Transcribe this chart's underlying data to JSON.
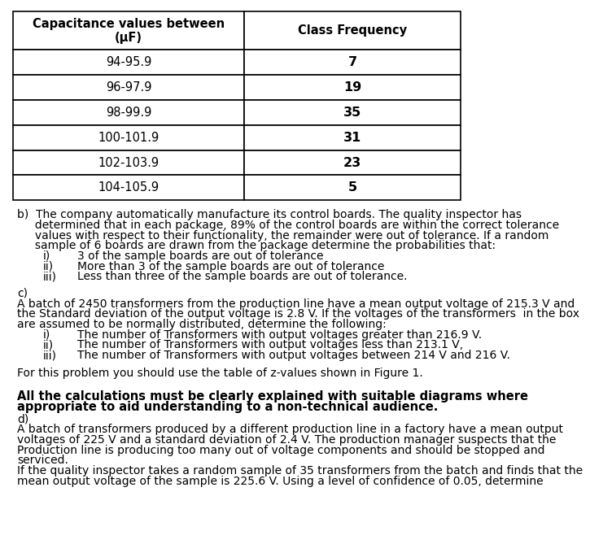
{
  "table_header": [
    "Capacitance values between\n(μF)",
    "Class Frequency"
  ],
  "table_rows": [
    [
      "94-95.9",
      "7"
    ],
    [
      "96-97.9",
      "19"
    ],
    [
      "98-99.9",
      "35"
    ],
    [
      "100-101.9",
      "31"
    ],
    [
      "102-103.9",
      "23"
    ],
    [
      "104-105.9",
      "5"
    ]
  ],
  "section_b_main": [
    "b)  The company automatically manufacture its control boards. The quality inspector has",
    "     determined that in each package, 89% of the control boards are within the correct tolerance",
    "     values with respect to their functionality, the remainder were out of tolerance. If a random",
    "     sample of 6 boards are drawn from the package determine the probabilities that:"
  ],
  "section_b_items": [
    [
      "i)",
      "3 of the sample boards are out of tolerance"
    ],
    [
      "ii)",
      "More than 3 of the sample boards are out of tolerance"
    ],
    [
      "iii)",
      "Less than three of the sample boards are out of tolerance."
    ]
  ],
  "section_c_label": "c)",
  "section_c_lines": [
    "A batch of 2450 transformers from the production line have a mean output voltage of 215.3 V and",
    "the Standard deviation of the output voltage is 2.8 V. If the voltages of the transformers  in the box",
    "are assumed to be normally distributed, determine the following:"
  ],
  "section_c_items": [
    [
      "i)",
      "The number of Transformers with output voltages greater than 216.9 V."
    ],
    [
      "ii)",
      "The number of Transformers with output voltages less than 213.1 V,"
    ],
    [
      "iii)",
      "The number of Transformers with output voltages between 214 V and 216 V."
    ]
  ],
  "z_note": "For this problem you should use the table of z-values shown in Figure 1.",
  "bold_note_lines": [
    "All the calculations must be clearly explained with suitable diagrams where",
    "appropriate to aid understanding to a non-technical audience."
  ],
  "section_d_label": "d)",
  "section_d_lines": [
    "A batch of transformers produced by a different production line in a factory have a mean output",
    "voltages of 225 V and a standard deviation of 2.4 V. The production manager suspects that the",
    "Production line is producing too many out of voltage components and should be stopped and",
    "serviced.",
    "If the quality inspector takes a random sample of 35 transformers from the batch and finds that the",
    "mean output voltage of the sample is 225.6 V. Using a level of confidence of 0.05, determine"
  ],
  "bg_color": "#ffffff",
  "text_color": "#000000",
  "font_size": 10.0,
  "table_font_size": 10.5,
  "bold_font_size": 10.5
}
